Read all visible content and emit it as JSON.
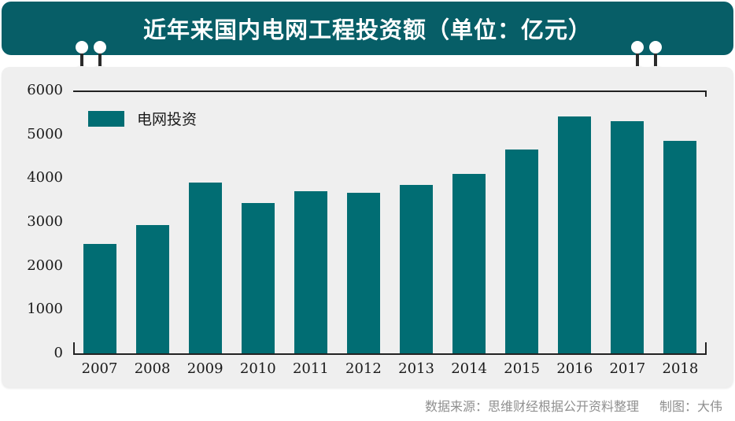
{
  "banner": {
    "title": "近年来国内电网工程投资额（单位：亿元）"
  },
  "legend": {
    "label": "电网投资"
  },
  "footer": {
    "source": "数据来源：思维财经根据公开资料整理",
    "author": "制图：大伟"
  },
  "colors": {
    "banner_bg": "#075e67",
    "bar": "#016d73",
    "panel_bg": "#efefef",
    "page_bg": "#ffffff",
    "axis": "#222222",
    "tick_text": "#1a1a1a",
    "title_text": "#ffffff",
    "footer_text": "#8f8f8f",
    "pin_stem": "#2b2b2b",
    "pin_head": "#ffffff"
  },
  "chart_data": {
    "type": "bar",
    "title": "近年来国内电网工程投资额（单位：亿元）",
    "series_name": "电网投资",
    "categories": [
      "2007",
      "2008",
      "2009",
      "2010",
      "2011",
      "2012",
      "2013",
      "2014",
      "2015",
      "2016",
      "2017",
      "2018"
    ],
    "values": [
      2500,
      2920,
      3900,
      3430,
      3700,
      3660,
      3850,
      4100,
      4650,
      5400,
      5300,
      4850
    ],
    "xlabel": "",
    "ylabel": "",
    "ylim": [
      0,
      6000
    ],
    "yticks": [
      0,
      1000,
      2000,
      3000,
      4000,
      5000,
      6000
    ],
    "grid": false,
    "legend_position": "top-left",
    "bar_color": "#016d73"
  }
}
